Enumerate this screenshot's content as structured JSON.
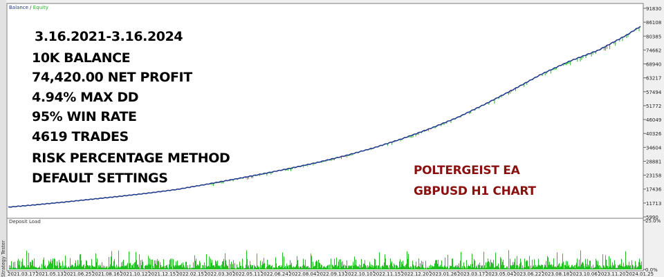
{
  "window": {
    "side_tab_label": "Strategy Tester"
  },
  "colors": {
    "balance": "#1f3a8a",
    "equity": "#22b222",
    "deposit_load": "#22c022",
    "annotation_red": "#8b1010"
  },
  "annotation": {
    "lines": [
      "3.16.2021-3.16.2024",
      "10K BALANCE",
      "74,420.00 NET PROFIT",
      "4.94% MAX DD",
      "95% WIN RATE",
      "4619 TRADES",
      "RISK PERCENTAGE METHOD",
      "DEFAULT SETTINGS"
    ],
    "red_lines": [
      "POLTERGEIST EA",
      "GBPUSD H1 CHART"
    ]
  },
  "chart_data": [
    {
      "type": "line",
      "legend": {
        "balance_label": "Balance",
        "separator": " / ",
        "equity_label": "Equity",
        "placement": "top-left"
      },
      "y_ticks": [
        "91830",
        "86108",
        "80385",
        "74662",
        "68940",
        "63217",
        "57494",
        "51772",
        "46049",
        "40326",
        "34604",
        "28881",
        "23158",
        "17436",
        "11713",
        "5990"
      ],
      "ylim": [
        5990,
        91830
      ],
      "x_ticks": [
        "2021.03.17",
        "2021.05.13",
        "2021.06.25",
        "2021.08.16",
        "2021.10.12",
        "2021.12.15",
        "2022.02.15",
        "2022.03.30",
        "2022.05.11",
        "2022.06.24",
        "2022.08.04",
        "2022.09.13",
        "2022.10.10",
        "2022.11.15",
        "2022.12.20",
        "2023.01.26",
        "2023.03.17",
        "2023.05.04",
        "2023.06.22",
        "2023.08.18",
        "2023.10.06",
        "2023.11.20",
        "2024.01.25"
      ],
      "series": [
        {
          "name": "Balance",
          "x": [
            "2021.03.17",
            "2021.05.13",
            "2021.06.25",
            "2021.08.16",
            "2021.10.12",
            "2021.12.15",
            "2022.02.15",
            "2022.03.30",
            "2022.05.11",
            "2022.06.24",
            "2022.08.04",
            "2022.09.13",
            "2022.10.10",
            "2022.11.15",
            "2022.12.20",
            "2023.01.26",
            "2023.03.17",
            "2023.05.04",
            "2023.06.22",
            "2023.08.18",
            "2023.10.06",
            "2023.11.20",
            "2024.01.25",
            "2024.03.16"
          ],
          "values": [
            10000,
            11000,
            12100,
            13300,
            14500,
            15800,
            17300,
            19300,
            21400,
            23600,
            25900,
            28400,
            31200,
            34400,
            38100,
            42300,
            47000,
            52600,
            58600,
            64900,
            70200,
            74600,
            80800,
            84420
          ]
        }
      ]
    },
    {
      "type": "bar",
      "title": "Deposit Load",
      "y_ticks": [
        "25.0%",
        "0.0%"
      ],
      "ylim": [
        0,
        25
      ]
    }
  ]
}
